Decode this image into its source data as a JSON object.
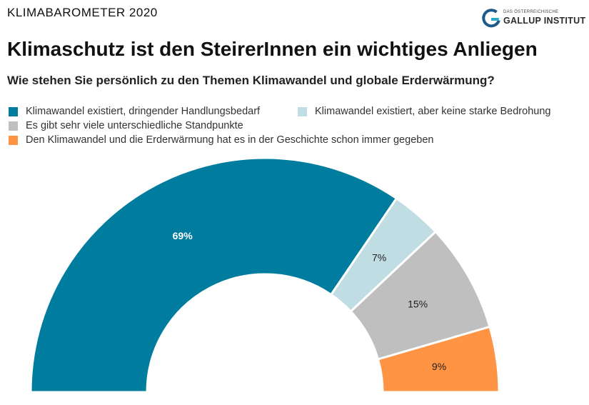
{
  "header": {
    "kicker": "KLIMABAROMETER 2020",
    "logo": {
      "small_text": "DAS ÖSTERREICHISCHE",
      "big_text": "GALLUP INSTITUT",
      "color_blue": "#1e5b8a",
      "color_teal": "#2aa9c9"
    }
  },
  "chart_data": {
    "type": "pie",
    "variant": "semicircle-donut",
    "title": "Klimaschutz ist den SteirerInnen ein wichtiges Anliegen",
    "subtitle": "Wie stehen Sie persönlich zu den Themen Klimawandel und globale Erderwärmung?",
    "categories": [
      "Klimawandel existiert, dringender Handlungsbedarf",
      "Klimawandel existiert, aber keine starke Bedrohung",
      "Es gibt sehr viele unterschiedliche Standpunkte",
      "Den Klimawandel und die Erderwärmung hat es in der Geschichte schon immer gegeben"
    ],
    "values": [
      69,
      7,
      15,
      9
    ],
    "data_labels": [
      "69%",
      "7%",
      "15%",
      "9%"
    ],
    "colors": [
      "#007d9e",
      "#c0dde3",
      "#bfbfbf",
      "#ff9444"
    ],
    "label_colors": [
      "#ffffff",
      "#222222",
      "#222222",
      "#222222"
    ],
    "legend_position": "top-left"
  }
}
